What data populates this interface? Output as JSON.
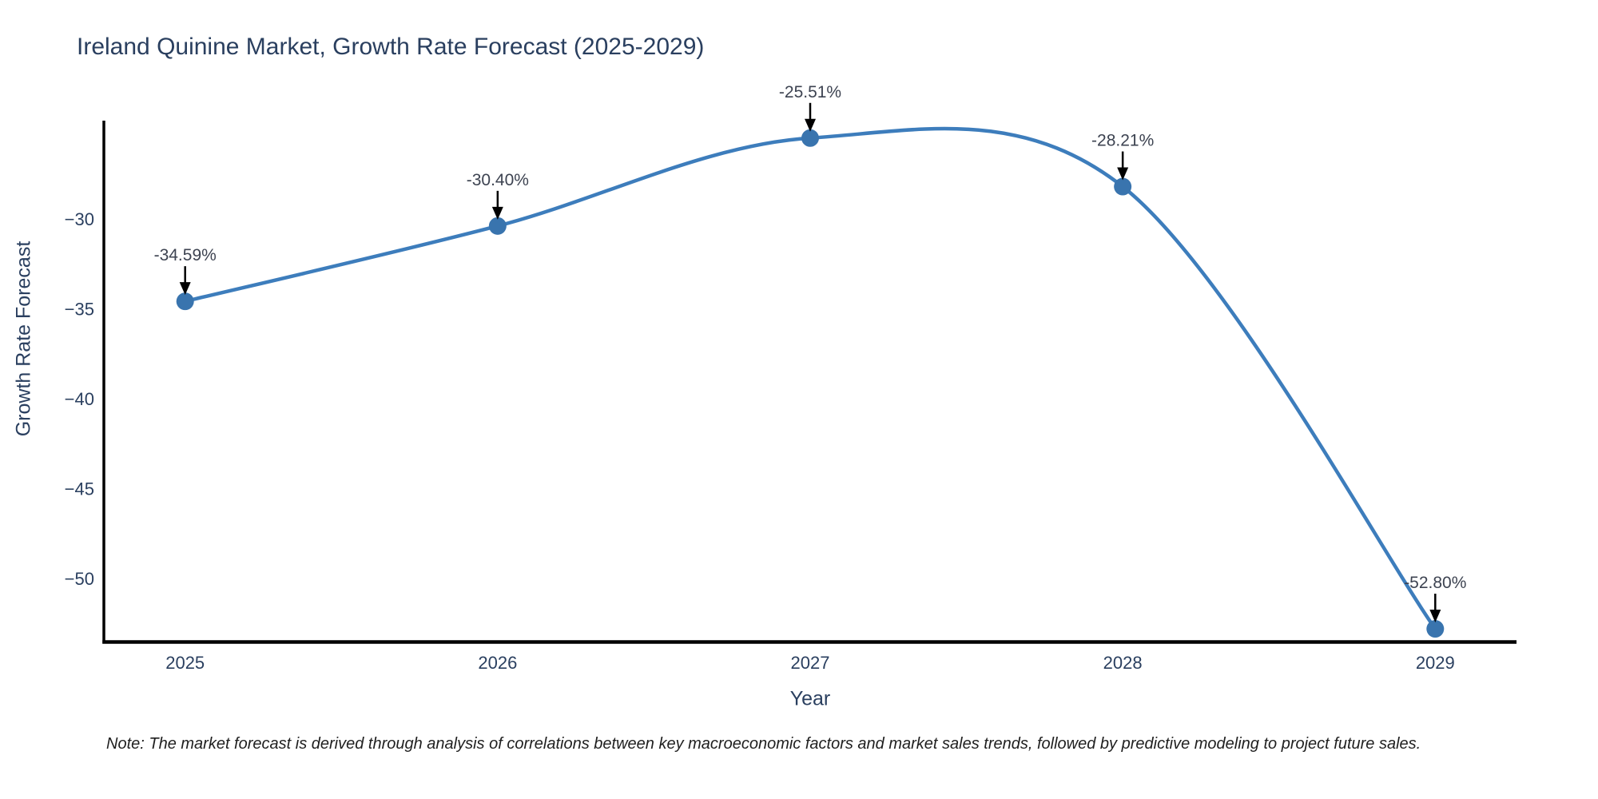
{
  "title": "Ireland Quinine Market, Growth Rate Forecast (2025-2029)",
  "note": "Note: The market forecast is derived through analysis of correlations between key macroeconomic factors and market sales trends, followed by predictive modeling to project future sales.",
  "colors": {
    "line": "#3d7dbc",
    "marker": "#3974ae",
    "axis_line": "#000000",
    "arrow": "#000000",
    "title_text": "#2a3f5f",
    "axis_text": "#2a3f5f",
    "annotation_text": "#3d4351",
    "background": "#ffffff"
  },
  "chart_data": {
    "type": "line",
    "title": "Ireland Quinine Market, Growth Rate Forecast (2025-2029)",
    "xlabel": "Year",
    "ylabel": "Growth Rate Forecast",
    "x": [
      2025,
      2026,
      2027,
      2028,
      2029
    ],
    "y": [
      -34.59,
      -30.4,
      -25.51,
      -28.21,
      -52.8
    ],
    "series": [
      {
        "name": "Growth Rate Forecast",
        "values": [
          -34.59,
          -30.4,
          -25.51,
          -28.21,
          -52.8
        ]
      }
    ],
    "annotations": [
      "-34.59%",
      "-30.40%",
      "-25.51%",
      "-28.21%",
      "-52.80%"
    ],
    "xtick_labels": [
      "2025",
      "2026",
      "2027",
      "2028",
      "2029"
    ],
    "yticks": [
      -30,
      -35,
      -40,
      -45,
      -50
    ],
    "ytick_labels": [
      "−30",
      "−35",
      "−40",
      "−45",
      "−50"
    ],
    "xlim": [
      2024.74,
      2029.26
    ],
    "ylim": [
      -53.42,
      -24.72
    ],
    "line_shape": "spline",
    "grid": false,
    "legend_position": "none",
    "marker_size": 11
  }
}
